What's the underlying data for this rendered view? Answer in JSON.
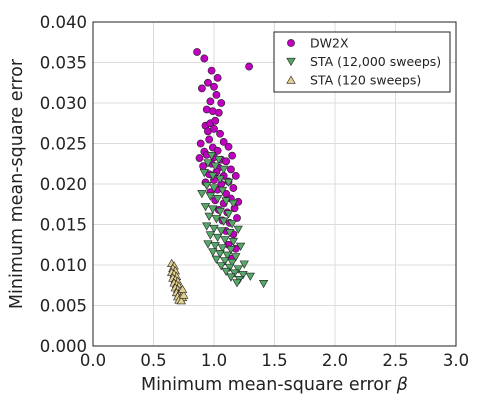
{
  "chart_data": {
    "type": "scatter",
    "title": "",
    "xlabel": "Minimum mean-square error",
    "xlabel_symbol": "β",
    "ylabel": "Minimum mean-square error",
    "xlim": [
      0.0,
      3.0
    ],
    "ylim": [
      0.0,
      0.04
    ],
    "x_ticks": [
      0.0,
      0.5,
      1.0,
      1.5,
      2.0,
      2.5,
      3.0
    ],
    "x_tick_labels": [
      "0.0",
      "0.5",
      "1.0",
      "1.5",
      "2.0",
      "2.5",
      "3.0"
    ],
    "y_ticks": [
      0.0,
      0.005,
      0.01,
      0.015,
      0.02,
      0.025,
      0.03,
      0.035,
      0.04
    ],
    "y_tick_labels": [
      "0.000",
      "0.005",
      "0.010",
      "0.015",
      "0.020",
      "0.025",
      "0.030",
      "0.035",
      "0.040"
    ],
    "grid": true,
    "legend_position": "top-right",
    "series": [
      {
        "name": "DW2X",
        "marker": "circle",
        "color": "#bf00bf",
        "points": [
          [
            0.86,
            0.0363
          ],
          [
            0.92,
            0.0355
          ],
          [
            0.98,
            0.034
          ],
          [
            1.29,
            0.0345
          ],
          [
            0.95,
            0.0325
          ],
          [
            1.03,
            0.0331
          ],
          [
            0.9,
            0.0318
          ],
          [
            1.0,
            0.032
          ],
          [
            0.97,
            0.0302
          ],
          [
            1.02,
            0.031
          ],
          [
            1.06,
            0.03
          ],
          [
            0.94,
            0.0292
          ],
          [
            0.99,
            0.029
          ],
          [
            1.04,
            0.0288
          ],
          [
            0.93,
            0.0272
          ],
          [
            0.97,
            0.0275
          ],
          [
            1.01,
            0.0278
          ],
          [
            0.95,
            0.0265
          ],
          [
            1.0,
            0.0268
          ],
          [
            1.05,
            0.0262
          ],
          [
            0.89,
            0.025
          ],
          [
            0.96,
            0.0255
          ],
          [
            1.08,
            0.0252
          ],
          [
            0.92,
            0.024
          ],
          [
            0.99,
            0.0245
          ],
          [
            1.03,
            0.0241
          ],
          [
            1.12,
            0.0246
          ],
          [
            0.88,
            0.0232
          ],
          [
            0.94,
            0.0236
          ],
          [
            1.0,
            0.0233
          ],
          [
            1.06,
            0.023
          ],
          [
            1.15,
            0.0235
          ],
          [
            0.91,
            0.0222
          ],
          [
            0.98,
            0.0225
          ],
          [
            1.04,
            0.022
          ],
          [
            1.1,
            0.0228
          ],
          [
            0.96,
            0.0212
          ],
          [
            1.02,
            0.0215
          ],
          [
            1.08,
            0.021
          ],
          [
            1.14,
            0.0218
          ],
          [
            0.93,
            0.0202
          ],
          [
            1.0,
            0.0205
          ],
          [
            1.06,
            0.02
          ],
          [
            1.12,
            0.0203
          ],
          [
            1.18,
            0.021
          ],
          [
            0.97,
            0.019
          ],
          [
            1.03,
            0.0193
          ],
          [
            1.1,
            0.0188
          ],
          [
            1.16,
            0.0195
          ],
          [
            1.01,
            0.018
          ],
          [
            1.08,
            0.0176
          ],
          [
            1.14,
            0.0182
          ],
          [
            1.2,
            0.0178
          ],
          [
            1.04,
            0.0168
          ],
          [
            1.11,
            0.0165
          ],
          [
            1.17,
            0.017
          ],
          [
            1.07,
            0.0155
          ],
          [
            1.13,
            0.0152
          ],
          [
            1.19,
            0.0158
          ],
          [
            1.1,
            0.0142
          ],
          [
            1.16,
            0.0138
          ],
          [
            1.12,
            0.0125
          ],
          [
            1.18,
            0.012
          ],
          [
            1.15,
            0.0108
          ]
        ]
      },
      {
        "name": "STA (12,000 sweeps)",
        "marker": "triangle-down",
        "color": "#55a868",
        "points": [
          [
            0.98,
            0.0235
          ],
          [
            1.04,
            0.023
          ],
          [
            0.95,
            0.0226
          ],
          [
            1.01,
            0.0222
          ],
          [
            1.08,
            0.0218
          ],
          [
            0.92,
            0.0214
          ],
          [
            0.99,
            0.021
          ],
          [
            1.05,
            0.0206
          ],
          [
            1.12,
            0.0202
          ],
          [
            0.94,
            0.0198
          ],
          [
            1.0,
            0.0195
          ],
          [
            1.07,
            0.0192
          ],
          [
            0.9,
            0.0188
          ],
          [
            0.97,
            0.0185
          ],
          [
            1.03,
            0.0182
          ],
          [
            1.1,
            0.0179
          ],
          [
            1.16,
            0.0176
          ],
          [
            0.93,
            0.0172
          ],
          [
            0.99,
            0.0169
          ],
          [
            1.05,
            0.0166
          ],
          [
            1.12,
            0.0163
          ],
          [
            0.96,
            0.016
          ],
          [
            1.02,
            0.0157
          ],
          [
            1.08,
            0.0154
          ],
          [
            1.15,
            0.0151
          ],
          [
            0.94,
            0.0148
          ],
          [
            1.0,
            0.0145
          ],
          [
            1.06,
            0.0142
          ],
          [
            1.13,
            0.014
          ],
          [
            1.2,
            0.0144
          ],
          [
            0.97,
            0.0137
          ],
          [
            1.03,
            0.0134
          ],
          [
            1.09,
            0.0131
          ],
          [
            1.16,
            0.0129
          ],
          [
            0.95,
            0.0126
          ],
          [
            1.01,
            0.0124
          ],
          [
            1.07,
            0.0121
          ],
          [
            1.14,
            0.0119
          ],
          [
            1.22,
            0.0123
          ],
          [
            0.99,
            0.0116
          ],
          [
            1.05,
            0.0114
          ],
          [
            1.11,
            0.0112
          ],
          [
            1.18,
            0.011
          ],
          [
            1.02,
            0.0107
          ],
          [
            1.09,
            0.0105
          ],
          [
            1.15,
            0.0103
          ],
          [
            1.25,
            0.0101
          ],
          [
            1.06,
            0.0099
          ],
          [
            1.13,
            0.0097
          ],
          [
            1.2,
            0.0095
          ],
          [
            1.1,
            0.0092
          ],
          [
            1.17,
            0.009
          ],
          [
            1.24,
            0.0088
          ],
          [
            1.14,
            0.0085
          ],
          [
            1.21,
            0.0082
          ],
          [
            1.3,
            0.0086
          ],
          [
            1.19,
            0.0078
          ],
          [
            1.41,
            0.0077
          ]
        ]
      },
      {
        "name": "STA (120 sweeps)",
        "marker": "triangle-up",
        "color": "#e3cf8e",
        "points": [
          [
            0.65,
            0.0102
          ],
          [
            0.67,
            0.0099
          ],
          [
            0.66,
            0.0096
          ],
          [
            0.68,
            0.0093
          ],
          [
            0.65,
            0.0091
          ],
          [
            0.67,
            0.0089
          ],
          [
            0.69,
            0.0086
          ],
          [
            0.66,
            0.0084
          ],
          [
            0.68,
            0.0082
          ],
          [
            0.7,
            0.008
          ],
          [
            0.67,
            0.0078
          ],
          [
            0.69,
            0.0076
          ],
          [
            0.71,
            0.0074
          ],
          [
            0.68,
            0.0072
          ],
          [
            0.7,
            0.007
          ],
          [
            0.72,
            0.0068
          ],
          [
            0.69,
            0.0066
          ],
          [
            0.71,
            0.0064
          ],
          [
            0.73,
            0.0062
          ],
          [
            0.7,
            0.0061
          ],
          [
            0.72,
            0.0059
          ],
          [
            0.74,
            0.006
          ],
          [
            0.71,
            0.0057
          ],
          [
            0.73,
            0.0056
          ],
          [
            0.75,
            0.0063
          ],
          [
            0.74,
            0.007
          ]
        ]
      }
    ]
  }
}
